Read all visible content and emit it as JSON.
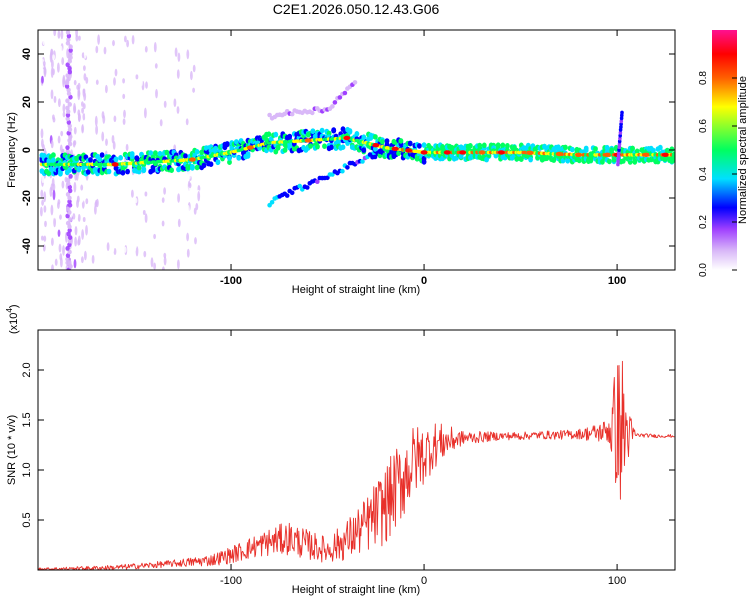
{
  "figure_title": "C2E1.2026.050.12.43.G06",
  "chart_data": [
    {
      "type": "heatmap",
      "title": "C2E1.2026.050.12.43.G06",
      "xlabel": "Height of straight line (km)",
      "ylabel": "Frequency (Hz)",
      "xlim": [
        -200,
        130
      ],
      "ylim": [
        -50,
        50
      ],
      "x_ticks": [
        -100,
        0,
        100
      ],
      "x_tick_labels": [
        "-100",
        "0",
        "100"
      ],
      "y_ticks": [
        -40,
        -20,
        0,
        20,
        40
      ],
      "y_tick_labels": [
        "-40",
        "-20",
        "0",
        "20",
        "40"
      ],
      "colorbar": {
        "label": "Normalized spectral amplitude",
        "range": [
          0,
          1
        ],
        "ticks": [
          0.0,
          0.2,
          0.4,
          0.6,
          0.8
        ],
        "tick_labels": [
          "0.0",
          "0.2",
          "0.4",
          "0.6",
          "0.8"
        ],
        "colors": [
          "#ffffff",
          "#d9b8f8",
          "#a040ff",
          "#0000ff",
          "#00e0ff",
          "#00ff60",
          "#ffff00",
          "#ff6000",
          "#ff0000",
          "#ff1090"
        ]
      },
      "main_ridge": [
        {
          "x": -198,
          "y": -6
        },
        {
          "x": -180,
          "y": -6
        },
        {
          "x": -160,
          "y": -6
        },
        {
          "x": -140,
          "y": -5
        },
        {
          "x": -120,
          "y": -4
        },
        {
          "x": -100,
          "y": -1
        },
        {
          "x": -80,
          "y": 3
        },
        {
          "x": -60,
          "y": 4
        },
        {
          "x": -40,
          "y": 5
        },
        {
          "x": -20,
          "y": 1
        },
        {
          "x": -10,
          "y": 0
        },
        {
          "x": 0,
          "y": -1
        },
        {
          "x": 20,
          "y": -1
        },
        {
          "x": 50,
          "y": -1
        },
        {
          "x": 80,
          "y": -2
        },
        {
          "x": 100,
          "y": -2
        },
        {
          "x": 130,
          "y": -2
        }
      ],
      "lower_branch": [
        {
          "x": -80,
          "y": -22
        },
        {
          "x": -65,
          "y": -16
        },
        {
          "x": -55,
          "y": -13
        },
        {
          "x": -45,
          "y": -9
        },
        {
          "x": -35,
          "y": -5
        },
        {
          "x": -25,
          "y": -2
        }
      ],
      "upper_branch": [
        {
          "x": -80,
          "y": 14
        },
        {
          "x": -65,
          "y": 16
        },
        {
          "x": -50,
          "y": 17
        },
        {
          "x": -40,
          "y": 25
        },
        {
          "x": -35,
          "y": 28
        }
      ]
    },
    {
      "type": "line",
      "title": "",
      "xlabel": "Height of straight line (km)",
      "ylabel": "SNR (10 * v/v)",
      "y_scale_label": "(x10",
      "y_scale_exponent": "4",
      "xlim": [
        -200,
        130
      ],
      "ylim": [
        0,
        24000
      ],
      "x_ticks": [
        -100,
        0,
        100
      ],
      "x_tick_labels": [
        "-100",
        "0",
        "100"
      ],
      "y_ticks": [
        5000,
        10000,
        15000,
        20000
      ],
      "y_tick_labels": [
        "0.5",
        "1.0",
        "1.5",
        "2.0"
      ],
      "series": [
        {
          "name": "SNR",
          "color": "#e8302a",
          "envelope": {
            "x": [
              -200,
              -180,
              -160,
              -140,
              -120,
              -110,
              -100,
              -90,
              -80,
              -70,
              -60,
              -50,
              -40,
              -30,
              -20,
              -15,
              -10,
              -5,
              0,
              5,
              10,
              20,
              30,
              40,
              50,
              60,
              70,
              80,
              90,
              95,
              100,
              102,
              104,
              106,
              110,
              120,
              130
            ],
            "y": [
              100,
              150,
              250,
              500,
              800,
              1000,
              1500,
              2200,
              2800,
              3200,
              2500,
              2000,
              3000,
              4500,
              6500,
              8000,
              9500,
              11000,
              11500,
              12500,
              12800,
              13200,
              13300,
              13400,
              13400,
              13500,
              13500,
              13600,
              13700,
              14000,
              14500,
              14000,
              13800,
              13600,
              13500,
              13400,
              13400
            ]
          },
          "noise_amplitude": {
            "x": [
              -200,
              -130,
              -110,
              -90,
              -70,
              -50,
              -30,
              -20,
              -10,
              0,
              10,
              20,
              40,
              60,
              80,
              95,
              100,
              103,
              106,
              110,
              130
            ],
            "y": [
              120,
              350,
              600,
              1100,
              1700,
              1300,
              2800,
              4000,
              4200,
              3000,
              1800,
              700,
              400,
              400,
              500,
              1200,
              7000,
              8000,
              2500,
              200,
              150
            ]
          }
        }
      ]
    }
  ]
}
